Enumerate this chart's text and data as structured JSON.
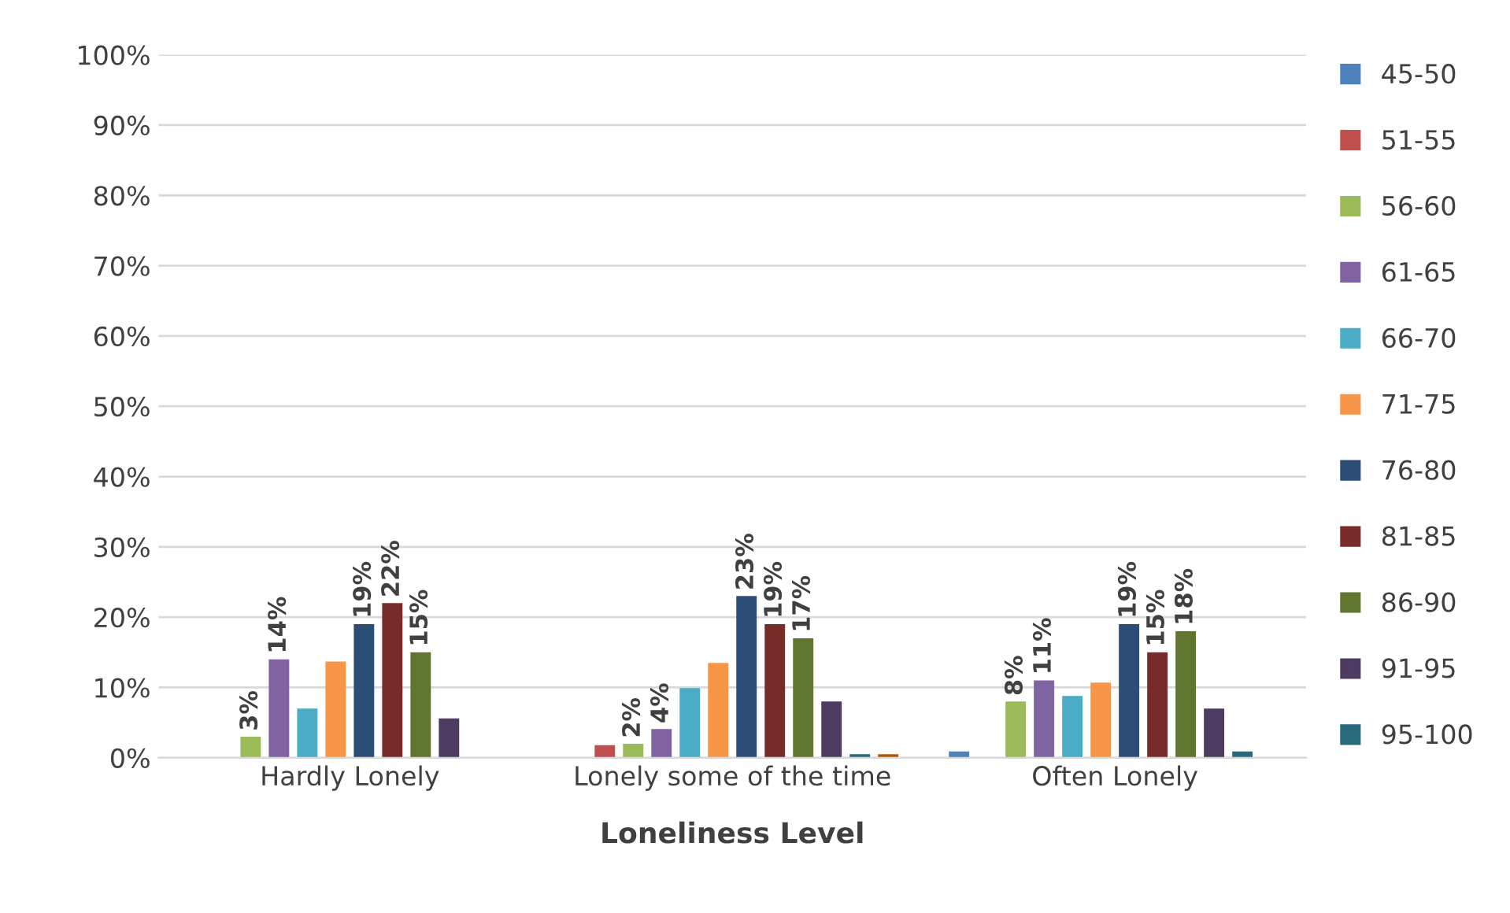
{
  "chart_data": {
    "type": "bar",
    "xlabel": "Loneliness Level",
    "categories": [
      "Hardly Lonely",
      "Lonely some of the time",
      "Often Lonely"
    ],
    "series": [
      {
        "name": "45-50",
        "color": "#4f81bd",
        "values": [
          null,
          null,
          0.9
        ]
      },
      {
        "name": "51-55",
        "color": "#c0504d",
        "values": [
          null,
          1.8,
          null
        ]
      },
      {
        "name": "56-60",
        "color": "#9bbb59",
        "values": [
          3,
          2,
          8
        ],
        "value_labels": [
          "3%",
          "2%",
          "8%"
        ]
      },
      {
        "name": "61-65",
        "color": "#8064a2",
        "values": [
          14,
          4.1,
          11
        ],
        "value_labels": [
          "14%",
          "4%",
          "11%"
        ]
      },
      {
        "name": "66-70",
        "color": "#4bacc6",
        "values": [
          7,
          9.9,
          8.8
        ]
      },
      {
        "name": "71-75",
        "color": "#f79646",
        "values": [
          13.7,
          13.5,
          10.7
        ]
      },
      {
        "name": "76-80",
        "color": "#2c4d75",
        "values": [
          19,
          23,
          19
        ],
        "value_labels": [
          "19%",
          "23%",
          "19%"
        ]
      },
      {
        "name": "81-85",
        "color": "#772c2a",
        "values": [
          22,
          19,
          15
        ],
        "value_labels": [
          "22%",
          "19%",
          "15%"
        ]
      },
      {
        "name": "86-90",
        "color": "#5f7530",
        "values": [
          15,
          17,
          18
        ],
        "value_labels": [
          "15%",
          "17%",
          "18%"
        ]
      },
      {
        "name": "91-95",
        "color": "#4d3b62",
        "values": [
          5.6,
          8,
          7
        ]
      },
      {
        "name": "95-100",
        "color": "#276a7c",
        "values": [
          null,
          0.5,
          0.9
        ]
      },
      {
        "color": "#b65708",
        "values": [
          null,
          0.5,
          null
        ]
      }
    ],
    "ylim": [
      0,
      100
    ],
    "yticks": [
      {
        "value": 0,
        "label": "0%"
      },
      {
        "value": 10,
        "label": "10%"
      },
      {
        "value": 20,
        "label": "20%"
      },
      {
        "value": 30,
        "label": "30%"
      },
      {
        "value": 40,
        "label": "40%"
      },
      {
        "value": 50,
        "label": "50%"
      },
      {
        "value": 60,
        "label": "60%"
      },
      {
        "value": 70,
        "label": "70%"
      },
      {
        "value": 80,
        "label": "80%"
      },
      {
        "value": 90,
        "label": "90%"
      },
      {
        "value": 100,
        "label": "100%"
      }
    ],
    "grid": "y",
    "legend": "right"
  }
}
